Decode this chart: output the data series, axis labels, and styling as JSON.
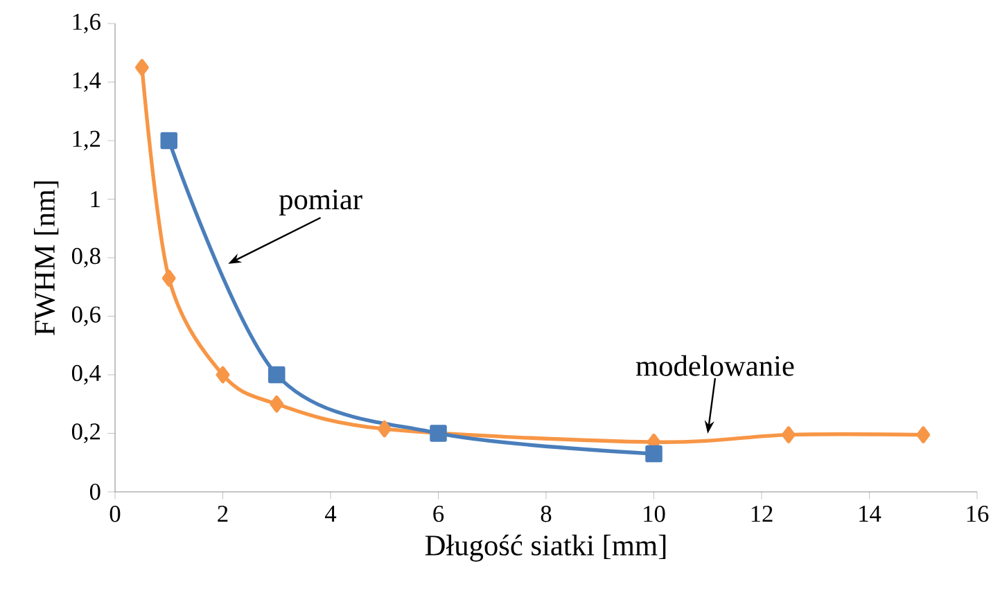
{
  "chart_data": {
    "type": "line",
    "xlabel": "Długość siatki [mm]",
    "ylabel": "FWHM [nm]",
    "xlim": [
      0,
      16
    ],
    "ylim": [
      0,
      1.6
    ],
    "xticks": [
      0,
      2,
      4,
      6,
      8,
      10,
      12,
      14,
      16
    ],
    "yticks": [
      0,
      {
        "value": 0.2,
        "label": "0,2"
      },
      {
        "value": 0.4,
        "label": "0,4"
      },
      {
        "value": 0.6,
        "label": "0,6"
      },
      {
        "value": 0.8,
        "label": "0,8"
      },
      1,
      {
        "value": 1.2,
        "label": "1,2"
      },
      {
        "value": 1.4,
        "label": "1,4"
      },
      {
        "value": 1.6,
        "label": "1,6"
      }
    ],
    "grid": false,
    "series": [
      {
        "name": "modelowanie",
        "color": "#f79646",
        "marker": "diamond",
        "x": [
          0.5,
          1,
          2,
          3,
          5,
          10,
          12.5,
          15
        ],
        "values": [
          1.45,
          0.73,
          0.4,
          0.3,
          0.215,
          0.17,
          0.195,
          0.195
        ]
      },
      {
        "name": "pomiar",
        "color": "#4a7ebb",
        "marker": "square",
        "x": [
          1,
          3,
          6,
          10
        ],
        "values": [
          1.2,
          0.4,
          0.2,
          0.13
        ]
      }
    ]
  }
}
